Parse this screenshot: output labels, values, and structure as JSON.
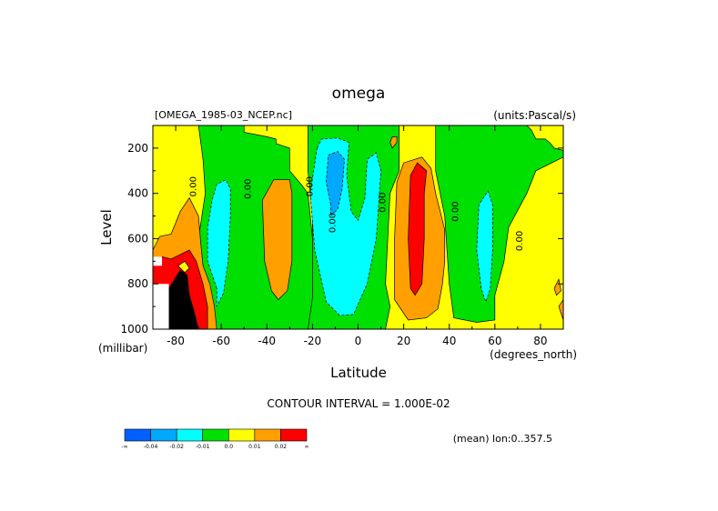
{
  "chart_data": {
    "type": "heatmap",
    "title": "omega",
    "file_label": "[OMEGA_1985-03_NCEP.nc]",
    "units_label": "(units:Pascal/s)",
    "xlabel": "Latitude",
    "xunit": "(degrees_north)",
    "ylabel": "Level",
    "yunit": "(millibar)",
    "x_ticks": [
      "-80",
      "-60",
      "-40",
      "-20",
      "0",
      "20",
      "40",
      "60",
      "80"
    ],
    "x_tick_values": [
      -80,
      -60,
      -40,
      -20,
      0,
      20,
      40,
      60,
      80
    ],
    "y_ticks": [
      "200",
      "400",
      "600",
      "800",
      "1000"
    ],
    "y_tick_values": [
      200,
      400,
      600,
      800,
      1000
    ],
    "xlim": [
      -90,
      90
    ],
    "ylim": [
      1000,
      100
    ],
    "contour_labels": [
      "0.00",
      "0.00",
      "0.00",
      "0.00",
      "0.00",
      "0.00",
      "0.00"
    ],
    "contour_interval_text": "CONTOUR INTERVAL = 1.000E-02",
    "mean_text": "(mean) lon:0..357.5",
    "colorbar": {
      "colors": [
        "#0060ff",
        "#00a8ff",
        "#00ffff",
        "#00e000",
        "#ffff00",
        "#ffa000",
        "#ff0000"
      ],
      "labels": [
        "-∞",
        "-0.04",
        "-0.02",
        "-0.01",
        "0.0",
        "0.01",
        "0.02",
        "∞"
      ]
    },
    "levels": [
      {
        "name": "green",
        "color": "#00e000"
      },
      {
        "name": "yellow",
        "color": "#ffff00"
      },
      {
        "name": "cyan",
        "color": "#00ffff"
      },
      {
        "name": "blue",
        "color": "#00a8ff"
      },
      {
        "name": "orange",
        "color": "#ffa000"
      },
      {
        "name": "red",
        "color": "#ff0000"
      },
      {
        "name": "black",
        "color": "#000000"
      }
    ]
  }
}
